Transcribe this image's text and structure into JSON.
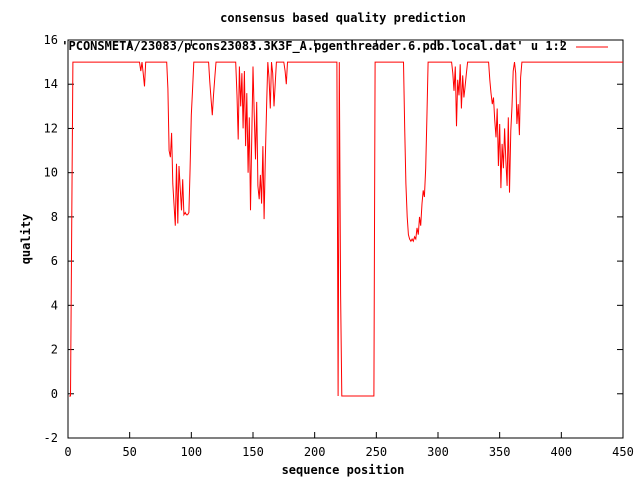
{
  "chart_data": {
    "type": "line",
    "title": "consensus based quality prediction",
    "xlabel": "sequence position",
    "ylabel": "quality",
    "xlim": [
      0,
      450
    ],
    "ylim": [
      -2,
      16
    ],
    "x_ticks": [
      0,
      50,
      100,
      150,
      200,
      250,
      300,
      350,
      400,
      450
    ],
    "y_ticks": [
      -2,
      0,
      2,
      4,
      6,
      8,
      10,
      12,
      14,
      16
    ],
    "grid": false,
    "legend_position": "top-right",
    "series": [
      {
        "name": "'PCONSMETA/23083/pcons23083.3K3F_A.pgenthreader.6.pdb.local.dat' u 1:2",
        "color": "#ff0000",
        "points": [
          [
            1,
            -0.1
          ],
          [
            2,
            -0.1
          ],
          [
            3,
            7.5
          ],
          [
            4,
            15
          ],
          [
            58,
            15
          ],
          [
            59,
            14.6
          ],
          [
            60,
            15
          ],
          [
            61,
            14.5
          ],
          [
            62,
            13.9
          ],
          [
            63,
            15
          ],
          [
            80,
            15
          ],
          [
            81,
            13.8
          ],
          [
            82,
            11
          ],
          [
            83,
            10.7
          ],
          [
            84,
            11.8
          ],
          [
            85,
            9.5
          ],
          [
            86,
            8.5
          ],
          [
            87,
            7.6
          ],
          [
            88,
            10.4
          ],
          [
            89,
            7.7
          ],
          [
            90,
            10.3
          ],
          [
            91,
            9.3
          ],
          [
            92,
            8.3
          ],
          [
            93,
            9.7
          ],
          [
            94,
            8.1
          ],
          [
            95,
            8.2
          ],
          [
            96,
            8.1
          ],
          [
            97,
            8.1
          ],
          [
            98,
            8.2
          ],
          [
            99,
            10.2
          ],
          [
            100,
            12.6
          ],
          [
            101,
            13.8
          ],
          [
            102,
            15
          ],
          [
            114,
            15
          ],
          [
            115,
            14.1
          ],
          [
            116,
            13.3
          ],
          [
            117,
            12.6
          ],
          [
            118,
            13.5
          ],
          [
            119,
            14.3
          ],
          [
            120,
            15
          ],
          [
            136,
            15
          ],
          [
            137,
            13.5
          ],
          [
            138,
            11.5
          ],
          [
            139,
            14.8
          ],
          [
            140,
            13
          ],
          [
            141,
            14.5
          ],
          [
            142,
            12
          ],
          [
            143,
            14.6
          ],
          [
            144,
            11.2
          ],
          [
            145,
            13.6
          ],
          [
            146,
            10
          ],
          [
            147,
            12.5
          ],
          [
            148,
            8.3
          ],
          [
            149,
            11.7
          ],
          [
            150,
            14.8
          ],
          [
            151,
            12.7
          ],
          [
            152,
            10.6
          ],
          [
            153,
            13.2
          ],
          [
            154,
            9.4
          ],
          [
            155,
            8.8
          ],
          [
            156,
            9.9
          ],
          [
            157,
            8.6
          ],
          [
            158,
            11.2
          ],
          [
            159,
            7.9
          ],
          [
            160,
            10.6
          ],
          [
            161,
            13
          ],
          [
            162,
            15
          ],
          [
            163,
            14.3
          ],
          [
            164,
            12.9
          ],
          [
            165,
            15
          ],
          [
            166,
            14.5
          ],
          [
            167,
            13
          ],
          [
            168,
            14
          ],
          [
            169,
            15
          ],
          [
            175,
            15
          ],
          [
            176,
            14.6
          ],
          [
            177,
            14
          ],
          [
            178,
            15
          ],
          [
            218,
            15
          ],
          [
            219,
            -0.1
          ],
          [
            220,
            15
          ],
          [
            221,
            4.5
          ],
          [
            222,
            -0.1
          ],
          [
            248,
            -0.1
          ],
          [
            249,
            15
          ],
          [
            272,
            15
          ],
          [
            273,
            12
          ],
          [
            274,
            9.5
          ],
          [
            275,
            8
          ],
          [
            276,
            7.2
          ],
          [
            277,
            7
          ],
          [
            278,
            6.9
          ],
          [
            279,
            7
          ],
          [
            280,
            6.9
          ],
          [
            281,
            7.1
          ],
          [
            282,
            7
          ],
          [
            283,
            7.5
          ],
          [
            284,
            7.2
          ],
          [
            285,
            8
          ],
          [
            286,
            7.6
          ],
          [
            287,
            8.6
          ],
          [
            288,
            9.2
          ],
          [
            289,
            8.9
          ],
          [
            290,
            10.2
          ],
          [
            291,
            12.5
          ],
          [
            292,
            15
          ],
          [
            311,
            15
          ],
          [
            312,
            14.5
          ],
          [
            313,
            13.7
          ],
          [
            314,
            14.8
          ],
          [
            315,
            12.1
          ],
          [
            316,
            14.2
          ],
          [
            317,
            13.5
          ],
          [
            318,
            14.9
          ],
          [
            319,
            12.9
          ],
          [
            320,
            14.4
          ],
          [
            321,
            13.4
          ],
          [
            322,
            13.9
          ],
          [
            323,
            14.5
          ],
          [
            324,
            15
          ],
          [
            341,
            15
          ],
          [
            342,
            14.2
          ],
          [
            343,
            13.6
          ],
          [
            344,
            13.1
          ],
          [
            345,
            13.4
          ],
          [
            346,
            12.4
          ],
          [
            347,
            11.6
          ],
          [
            348,
            12.9
          ],
          [
            349,
            10.3
          ],
          [
            350,
            12.2
          ],
          [
            351,
            9.3
          ],
          [
            352,
            11.3
          ],
          [
            353,
            10.2
          ],
          [
            354,
            12
          ],
          [
            355,
            10.6
          ],
          [
            356,
            9.4
          ],
          [
            357,
            12.5
          ],
          [
            358,
            9.1
          ],
          [
            359,
            11.9
          ],
          [
            360,
            13
          ],
          [
            361,
            14.6
          ],
          [
            362,
            15
          ],
          [
            363,
            14.5
          ],
          [
            364,
            12.2
          ],
          [
            365,
            13.1
          ],
          [
            366,
            11.7
          ],
          [
            367,
            14.3
          ],
          [
            368,
            15
          ],
          [
            450,
            15
          ]
        ]
      }
    ]
  }
}
